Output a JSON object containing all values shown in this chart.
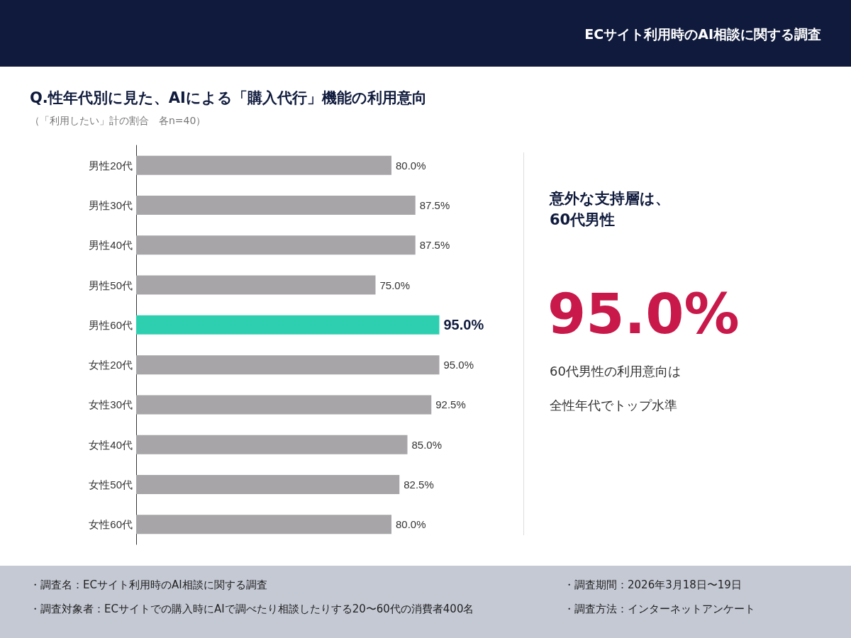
{
  "chart_data": {
    "type": "bar",
    "orientation": "horizontal",
    "title": "Q.性年代別に見た、AIによる「購入代行」機能の利用意向",
    "subtitle": "（「利用したい」計の割合　各n=40）",
    "categories": [
      "男性20代",
      "男性30代",
      "男性40代",
      "男性50代",
      "男性60代",
      "女性20代",
      "女性30代",
      "女性40代",
      "女性50代",
      "女性60代"
    ],
    "values": [
      80.0,
      87.5,
      87.5,
      75.0,
      95.0,
      95.0,
      92.5,
      85.0,
      82.5,
      80.0
    ],
    "colors": [
      "#a7a5a8",
      "#a7a5a8",
      "#a7a5a8",
      "#a7a5a8",
      "#2ecfb0",
      "#a7a5a8",
      "#a7a5a8",
      "#a7a5a8",
      "#a7a5a8",
      "#a7a5a8"
    ],
    "value_labels": [
      "80.0%",
      "87.5%",
      "87.5%",
      "75.0%",
      "95.0%",
      "95.0%",
      "92.5%",
      "85.0%",
      "82.5%",
      "80.0%"
    ],
    "tick_labels": "y",
    "annotations": [
      "ECサイト利用時のAI相談に関する調査",
      "意外な支持層は、60代男性",
      "95.0%",
      "60代男性の利用意向は",
      "全性年代でトップ水準",
      "・調査名：ECサイト利用時のAI相談に関する調査",
      "・調査対象者：ECサイトでの購入時にAIで調べたり相談したりする20〜60代の消費者400名",
      "・調査期間：2026年3月18日〜19日",
      "・調査方法：インターネットアンケート"
    ]
  }
}
